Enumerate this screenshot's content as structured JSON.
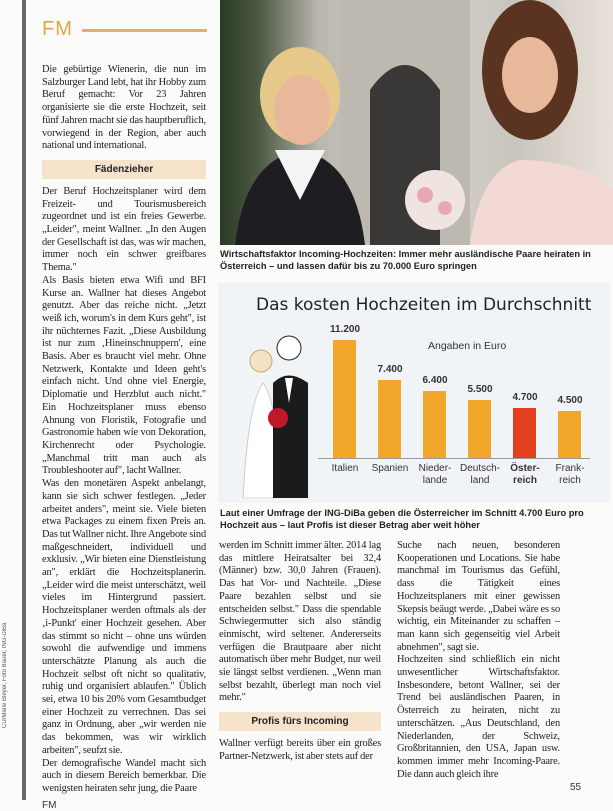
{
  "header": {
    "section": "FM"
  },
  "credit": "CU/Marie Bleyer, Foto Bauer, ING-DiBa",
  "col1": {
    "p1": "Die gebürtige Wienerin, die nun im Salzburger Land lebt, hat ihr Hobby zum Beruf gemacht: Vor 23 Jahren organisierte sie die erste Hochzeit, seit fünf Jahren macht sie das hauptberuflich, vorwiegend in der Region, aber auch national und international.",
    "sub1": "Fädenzieher",
    "p2": "Der Beruf Hochzeitsplaner wird dem Freizeit- und Tourismusbereich zugeordnet und ist ein freies Gewerbe. „Leider\", meint Wallner. „In den Augen der Gesellschaft ist das, was wir machen, immer noch ein schwer greifbares Thema.\"",
    "p3": "Als Basis bieten etwa Wifi und BFI Kurse an. Wallner hat dieses Angebot genutzt. Aber das reiche nicht. „Jetzt weiß ich, worum's in dem Kurs geht\", ist ihr nüchternes Fazit. „Diese Ausbildung ist nur zum ‚Hineinschnuppern', eine Basis. Aber es braucht viel mehr. Ohne Netzwerk, Kontakte und Ideen geht's einfach nicht. Und ohne viel Energie, Diplomatie und Herzblut auch nicht.\" Ein Hochzeitsplaner muss ebenso Ahnung von Floristik, Fotografie und Gastronomie haben wie von Dekoration, Kirchenrecht oder Psychologie. „Manchmal tritt man auch als Troubleshooter auf\", lacht Wallner.",
    "p4": "Was den monetären Aspekt anbelangt, kann sie sich schwer festlegen. „Jeder arbeitet anders\", meint sie. Viele bieten etwa Packages zu einem fixen Preis an. Das tut Wallner nicht. Ihre Angebote sind maßgeschneidert, individuell und exklusiv. „Wir bieten eine Dienstleistung an\", erklärt die Hochzeitsplanerin. „Leider wird die meist unterschätzt, weil vieles im Hintergrund passiert. Hochzeitsplaner werden oftmals als der ‚i-Punkt' einer Hochzeit gesehen. Aber das stimmt so nicht – ohne uns würden sowohl die aufwendige und immens unterschätzte Planung als auch die Hochzeit selbst oft nicht so qualitativ, ruhig und organisiert ablaufen.\" Üblich sei, etwa 10 bis 20% vom Gesamtbudget einer Hochzeit zu verrechnen. Das sei ganz in Ordnung, aber „wir werden nie das bekommen, was wir wirklich arbeiten\", seufzt sie.",
    "p5": "Der demografische Wandel macht sich auch in diesem Bereich bemerkbar. Die wenigsten heiraten sehr jung, die Paare"
  },
  "photo_caption": "Wirtschaftsfaktor Incoming-Hochzeiten: Immer mehr ausländische Paare heiraten in Österreich – und lassen dafür bis zu 70.000 Euro springen",
  "chart_data": {
    "type": "bar",
    "title": "Das kosten Hochzeiten im Durchschnitt",
    "unit_label": "Angaben in Euro",
    "categories": [
      "Italien",
      "Spanien",
      "Nieder-\nlande",
      "Deutsch-\nland",
      "Öster-\nreich",
      "Frank-\nreich"
    ],
    "values": [
      11200,
      7400,
      6400,
      5500,
      4700,
      4500
    ],
    "value_labels": [
      "11.200",
      "7.400",
      "6.400",
      "5.500",
      "4.700",
      "4.500"
    ],
    "colors": [
      "#f2a72a",
      "#f2a72a",
      "#f2a72a",
      "#f2a72a",
      "#e2401e",
      "#f2a72a"
    ],
    "highlight": "Öster-\nreich"
  },
  "chart_caption": "Laut einer Umfrage der ING-DiBa geben die Österreicher im Schnitt 4.700 Euro pro Hochzeit aus – laut Profis ist dieser Betrag aber weit höher",
  "col2": {
    "p1": "werden im Schnitt immer älter. 2014 lag das mittlere Heiratsalter bei 32,4 (Männer) bzw. 30,0 Jahren (Frauen). Das hat Vor- und Nachteile. „Diese Paare bezahlen selbst und sie entscheiden selbst.\" Dass die spendable Schwiegermutter sich also ständig einmischt, wird seltener. Andererseits verfügen die Brautpaare aber nicht automatisch über mehr Budget, nur weil sie längst selbst verdienen. „Wenn man selbst bezahlt, überlegt man noch viel mehr.\"",
    "sub": "Profis fürs Incoming",
    "p2": "Wallner verfügt bereits über ein großes Partner-Netzwerk, ist aber stets auf der"
  },
  "col3": {
    "p1": "Suche nach neuen, besonderen Kooperationen und Locations. Sie habe manchmal im Tourismus das Gefühl, dass die Tätigkeit eines Hochzeitsplaners mit einer gewissen Skepsis beäugt werde. „Dabei wäre es so wichtig, ein Miteinander zu schaffen – man kann sich gegenseitig viel Arbeit abnehmen\", sagt sie.",
    "p2": "Hochzeiten sind schließlich ein nicht unwesentlicher Wirtschaftsfaktor. Insbesondere, betont Wallner, sei der Trend bei ausländischen Paaren, in Österreich zu heiraten, nicht zu unterschätzen. „Aus Deutschland, den Niederlanden, der Schweiz, Großbritannien, den USA, Japan usw. kommen immer mehr Incoming-Paare. Die dann auch gleich ihre"
  },
  "footer": {
    "left": "FM",
    "page": "55"
  }
}
